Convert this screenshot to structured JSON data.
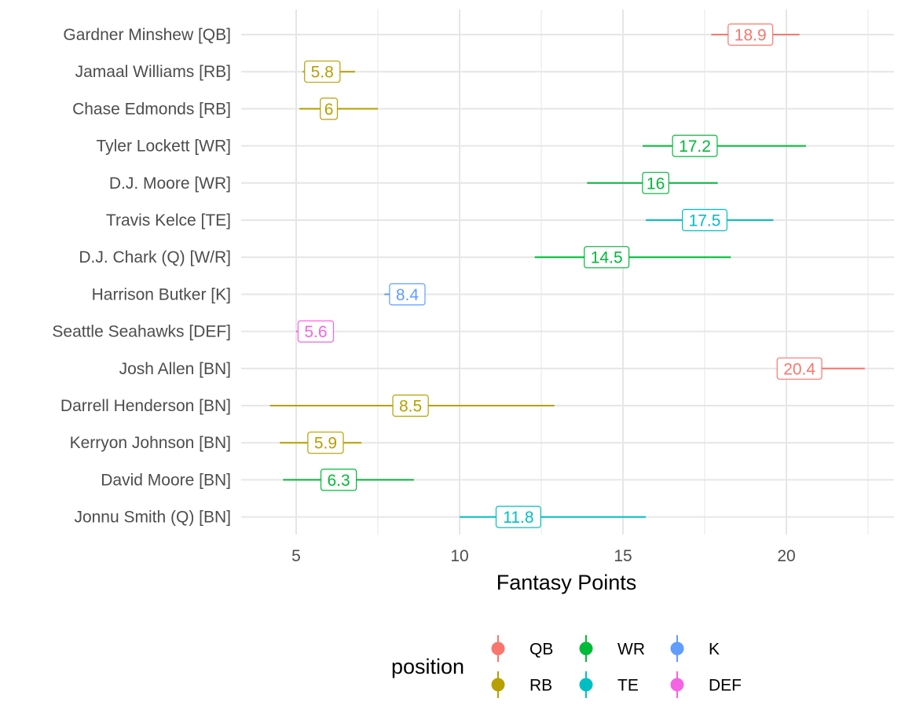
{
  "chart_data": {
    "type": "errorbar",
    "xlabel": "Fantasy Points",
    "ylabel": "",
    "xlim": [
      3.8,
      23.3
    ],
    "xticks": [
      5,
      10,
      15,
      20
    ],
    "grid": true,
    "legend": {
      "title": "position",
      "placement": "bottom",
      "entries": [
        {
          "label": "QB",
          "color": "#F8766D"
        },
        {
          "label": "WR",
          "color": "#00BA38"
        },
        {
          "label": "K",
          "color": "#619CFF"
        },
        {
          "label": "RB",
          "color": "#B79F00"
        },
        {
          "label": "TE",
          "color": "#00BFC4"
        },
        {
          "label": "DEF",
          "color": "#F564E3"
        }
      ]
    },
    "colors": {
      "QB": "#F8766D",
      "RB": "#B79F00",
      "WR": "#00BA38",
      "TE": "#00BFC4",
      "K": "#619CFF",
      "DEF": "#F564E3"
    },
    "players": [
      {
        "name": "Gardner Minshew [QB]",
        "position": "QB",
        "value": 18.9,
        "label": "18.9",
        "low": 17.7,
        "high": 20.4
      },
      {
        "name": "Jamaal Williams [RB]",
        "position": "RB",
        "value": 5.8,
        "label": "5.8",
        "low": 5.2,
        "high": 6.8
      },
      {
        "name": "Chase Edmonds [RB]",
        "position": "RB",
        "value": 6.0,
        "label": "6",
        "low": 5.1,
        "high": 7.5
      },
      {
        "name": "Tyler Lockett [WR]",
        "position": "WR",
        "value": 17.2,
        "label": "17.2",
        "low": 15.6,
        "high": 20.6
      },
      {
        "name": "D.J. Moore [WR]",
        "position": "WR",
        "value": 16.0,
        "label": "16",
        "low": 13.9,
        "high": 17.9
      },
      {
        "name": "Travis Kelce [TE]",
        "position": "TE",
        "value": 17.5,
        "label": "17.5",
        "low": 15.7,
        "high": 19.6
      },
      {
        "name": "D.J. Chark (Q) [W/R]",
        "position": "WR",
        "value": 14.5,
        "label": "14.5",
        "low": 12.3,
        "high": 18.3
      },
      {
        "name": "Harrison Butker [K]",
        "position": "K",
        "value": 8.4,
        "label": "8.4",
        "low": 7.7,
        "high": 8.5
      },
      {
        "name": "Seattle Seahawks [DEF]",
        "position": "DEF",
        "value": 5.6,
        "label": "5.6",
        "low": 5.0,
        "high": 5.7
      },
      {
        "name": "Josh Allen [BN]",
        "position": "QB",
        "value": 20.4,
        "label": "20.4",
        "low": 20.3,
        "high": 22.4
      },
      {
        "name": "Darrell Henderson [BN]",
        "position": "RB",
        "value": 8.5,
        "label": "8.5",
        "low": 4.2,
        "high": 12.9
      },
      {
        "name": "Kerryon Johnson [BN]",
        "position": "RB",
        "value": 5.9,
        "label": "5.9",
        "low": 4.5,
        "high": 7.0
      },
      {
        "name": "David Moore [BN]",
        "position": "WR",
        "value": 6.3,
        "label": "6.3",
        "low": 4.6,
        "high": 8.6
      },
      {
        "name": "Jonnu Smith (Q) [BN]",
        "position": "TE",
        "value": 11.8,
        "label": "11.8",
        "low": 10.0,
        "high": 15.7
      }
    ]
  }
}
